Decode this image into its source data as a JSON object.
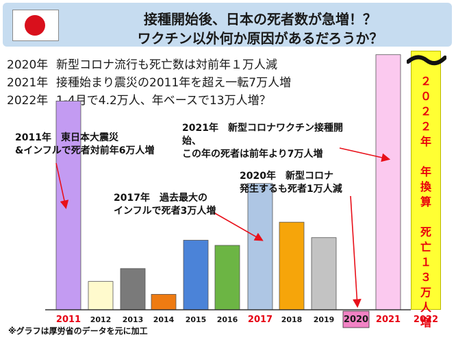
{
  "header": {
    "title_line1": "接種開始後、日本の死者数が急増！？",
    "title_line2": "ワクチン以外何か原因があるだろうか？"
  },
  "intro": [
    {
      "year": "2020年",
      "text": "新型コロナ流行も死亡数は対前年１万人減"
    },
    {
      "year": "2021年",
      "text": "接種始まり震災の2011年を超え一転7万人増"
    },
    {
      "year": "2022年",
      "text": "1-4月で4.2万人、年ベースで13万人増？"
    }
  ],
  "annotations": {
    "a2011": {
      "line1": "2011年　東日本大震災",
      "line2": "&インフルで死者対前年6万人増"
    },
    "a2017": {
      "line1": "2017年　過去最大の",
      "line2": "インフルで死者3万人増"
    },
    "a2021": {
      "line1": "2021年　新型コロナワクチン接種開",
      "line2": "始、",
      "line3": "この年の死者は前年より7万人増"
    },
    "a2020": {
      "line1": "2020年　新型コロナ",
      "line2": "発生するも死者1万人減"
    }
  },
  "col2022_text": "２\n０\n２\n２\n年\n\n年\n換\n算\n\n死\n亡\n１\n３\n万\n人\n増",
  "footnote": "※グラフは厚労省のデータを元に加工",
  "colors": {
    "red_label": "#e60012",
    "arrow": "#e8101a",
    "axis": "#333333"
  },
  "chart_data": {
    "type": "bar",
    "categories": [
      "2011",
      "2012",
      "2013",
      "2014",
      "2015",
      "2016",
      "2017",
      "2018",
      "2019",
      "2020",
      "2021",
      "2022"
    ],
    "values": [
      81,
      11,
      16,
      6,
      27,
      25,
      49,
      34,
      28,
      0,
      99,
      100
    ],
    "highlight_labels": [
      "2011",
      "2017",
      "2020",
      "2021",
      "2022"
    ],
    "colors": [
      "#c39bf2",
      "#fffacd",
      "#7a7a7a",
      "#ee7b12",
      "#4b83d8",
      "#6cb544",
      "#aec6e4",
      "#f6a50a",
      "#c3c3c3",
      "#f283c5",
      "#fbc9ef",
      "#ffff33"
    ],
    "title": "",
    "xlabel": "",
    "ylabel": "",
    "ylim": [
      0,
      100
    ],
    "grid": false,
    "legend": "none"
  }
}
